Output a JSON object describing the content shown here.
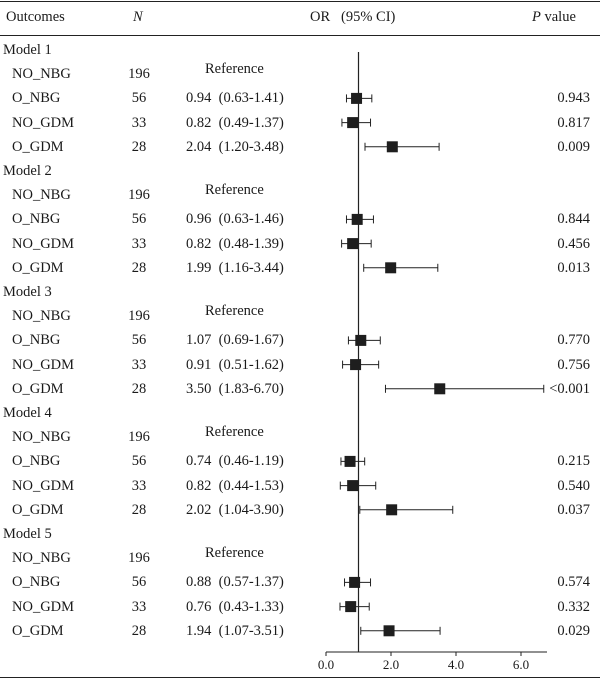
{
  "header": {
    "outcomes": "Outcomes",
    "n": "N",
    "or_ci": "OR   (95% CI)",
    "p_italic": "P",
    "p_rest": " value"
  },
  "reference_label": "Reference",
  "rows": [
    {
      "kind": "model",
      "label": "Model 1"
    },
    {
      "kind": "data",
      "outcome": "NO_NBG",
      "n": "196",
      "or_text": "",
      "p": "",
      "reference": true
    },
    {
      "kind": "data",
      "outcome": "O_NBG",
      "n": "56",
      "or_text": "0.94  (0.63-1.41)",
      "p": "0.943"
    },
    {
      "kind": "data",
      "outcome": "NO_GDM",
      "n": "33",
      "or_text": "0.82  (0.49-1.37)",
      "p": "0.817"
    },
    {
      "kind": "data",
      "outcome": "O_GDM",
      "n": "28",
      "or_text": "2.04  (1.20-3.48)",
      "p": "0.009"
    },
    {
      "kind": "model",
      "label": "Model 2"
    },
    {
      "kind": "data",
      "outcome": "NO_NBG",
      "n": "196",
      "or_text": "",
      "p": "",
      "reference": true
    },
    {
      "kind": "data",
      "outcome": "O_NBG",
      "n": "56",
      "or_text": "0.96  (0.63-1.46)",
      "p": "0.844"
    },
    {
      "kind": "data",
      "outcome": "NO_GDM",
      "n": "33",
      "or_text": "0.82  (0.48-1.39)",
      "p": "0.456"
    },
    {
      "kind": "data",
      "outcome": "O_GDM",
      "n": "28",
      "or_text": "1.99  (1.16-3.44)",
      "p": "0.013"
    },
    {
      "kind": "model",
      "label": "Model 3"
    },
    {
      "kind": "data",
      "outcome": "NO_NBG",
      "n": "196",
      "or_text": "",
      "p": "",
      "reference": true
    },
    {
      "kind": "data",
      "outcome": "O_NBG",
      "n": "56",
      "or_text": "1.07  (0.69-1.67)",
      "p": "0.770"
    },
    {
      "kind": "data",
      "outcome": "NO_GDM",
      "n": "33",
      "or_text": "0.91  (0.51-1.62)",
      "p": "0.756"
    },
    {
      "kind": "data",
      "outcome": "O_GDM",
      "n": "28",
      "or_text": "3.50  (1.83-6.70)",
      "p": "<0.001"
    },
    {
      "kind": "model",
      "label": "Model 4"
    },
    {
      "kind": "data",
      "outcome": "NO_NBG",
      "n": "196",
      "or_text": "",
      "p": "",
      "reference": true
    },
    {
      "kind": "data",
      "outcome": "O_NBG",
      "n": "56",
      "or_text": "0.74  (0.46-1.19)",
      "p": "0.215"
    },
    {
      "kind": "data",
      "outcome": "NO_GDM",
      "n": "33",
      "or_text": "0.82  (0.44-1.53)",
      "p": "0.540"
    },
    {
      "kind": "data",
      "outcome": "O_GDM",
      "n": "28",
      "or_text": "2.02  (1.04-3.90)",
      "p": "0.037"
    },
    {
      "kind": "model",
      "label": "Model 5"
    },
    {
      "kind": "data",
      "outcome": "NO_NBG",
      "n": "196",
      "or_text": "",
      "p": "",
      "reference": true
    },
    {
      "kind": "data",
      "outcome": "O_NBG",
      "n": "56",
      "or_text": "0.88  (0.57-1.37)",
      "p": "0.574"
    },
    {
      "kind": "data",
      "outcome": "NO_GDM",
      "n": "33",
      "or_text": "0.76  (0.43-1.33)",
      "p": "0.332"
    },
    {
      "kind": "data",
      "outcome": "O_GDM",
      "n": "28",
      "or_text": "1.94  (1.07-3.51)",
      "p": "0.029"
    }
  ],
  "chart_data": {
    "type": "forest",
    "reference_line": 1.0,
    "xlim": [
      0,
      6.8
    ],
    "xticks": [
      "0.0",
      "2.0",
      "4.0",
      "6.0"
    ],
    "series": [
      {
        "name": "Model 1",
        "points": [
          {
            "outcome": "O_NBG",
            "or": 0.94,
            "lo": 0.63,
            "hi": 1.41
          },
          {
            "outcome": "NO_GDM",
            "or": 0.82,
            "lo": 0.49,
            "hi": 1.37
          },
          {
            "outcome": "O_GDM",
            "or": 2.04,
            "lo": 1.2,
            "hi": 3.48
          }
        ]
      },
      {
        "name": "Model 2",
        "points": [
          {
            "outcome": "O_NBG",
            "or": 0.96,
            "lo": 0.63,
            "hi": 1.46
          },
          {
            "outcome": "NO_GDM",
            "or": 0.82,
            "lo": 0.48,
            "hi": 1.39
          },
          {
            "outcome": "O_GDM",
            "or": 1.99,
            "lo": 1.16,
            "hi": 3.44
          }
        ]
      },
      {
        "name": "Model 3",
        "points": [
          {
            "outcome": "O_NBG",
            "or": 1.07,
            "lo": 0.69,
            "hi": 1.67
          },
          {
            "outcome": "NO_GDM",
            "or": 0.91,
            "lo": 0.51,
            "hi": 1.62
          },
          {
            "outcome": "O_GDM",
            "or": 3.5,
            "lo": 1.83,
            "hi": 6.7
          }
        ]
      },
      {
        "name": "Model 4",
        "points": [
          {
            "outcome": "O_NBG",
            "or": 0.74,
            "lo": 0.46,
            "hi": 1.19
          },
          {
            "outcome": "NO_GDM",
            "or": 0.82,
            "lo": 0.44,
            "hi": 1.53
          },
          {
            "outcome": "O_GDM",
            "or": 2.02,
            "lo": 1.04,
            "hi": 3.9
          }
        ]
      },
      {
        "name": "Model 5",
        "points": [
          {
            "outcome": "O_NBG",
            "or": 0.88,
            "lo": 0.57,
            "hi": 1.37
          },
          {
            "outcome": "NO_GDM",
            "or": 0.76,
            "lo": 0.43,
            "hi": 1.33
          },
          {
            "outcome": "O_GDM",
            "or": 1.94,
            "lo": 1.07,
            "hi": 3.51
          }
        ]
      }
    ]
  }
}
